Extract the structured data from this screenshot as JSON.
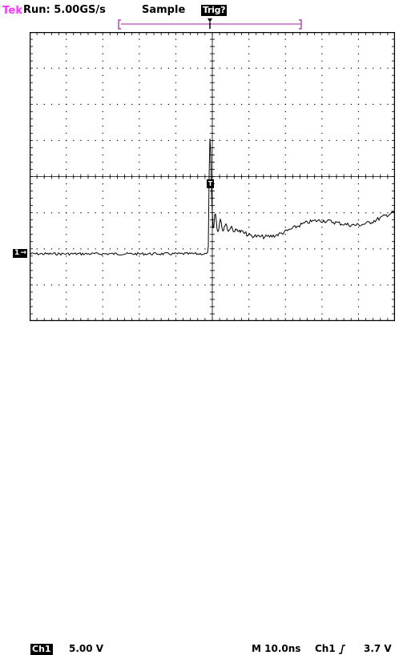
{
  "header": {
    "brand": "Tek",
    "run_status": "Run: 5.00GS/s",
    "acq_mode": "Sample",
    "trig_state": "Trig?"
  },
  "channel": {
    "id_label": "Ch1",
    "scale": "5.00 V",
    "ground_marker": "1"
  },
  "timebase": {
    "readout": "M 10.0ns",
    "trigger_source": "Ch1",
    "trigger_slope_icon": "rising-edge-icon",
    "trigger_level": "3.7 V"
  },
  "trigger_marker": "T",
  "colors": {
    "brand": "#ff35ff",
    "record_bar": "#a020a0",
    "trace": "#000000",
    "grid": "#000000"
  }
}
